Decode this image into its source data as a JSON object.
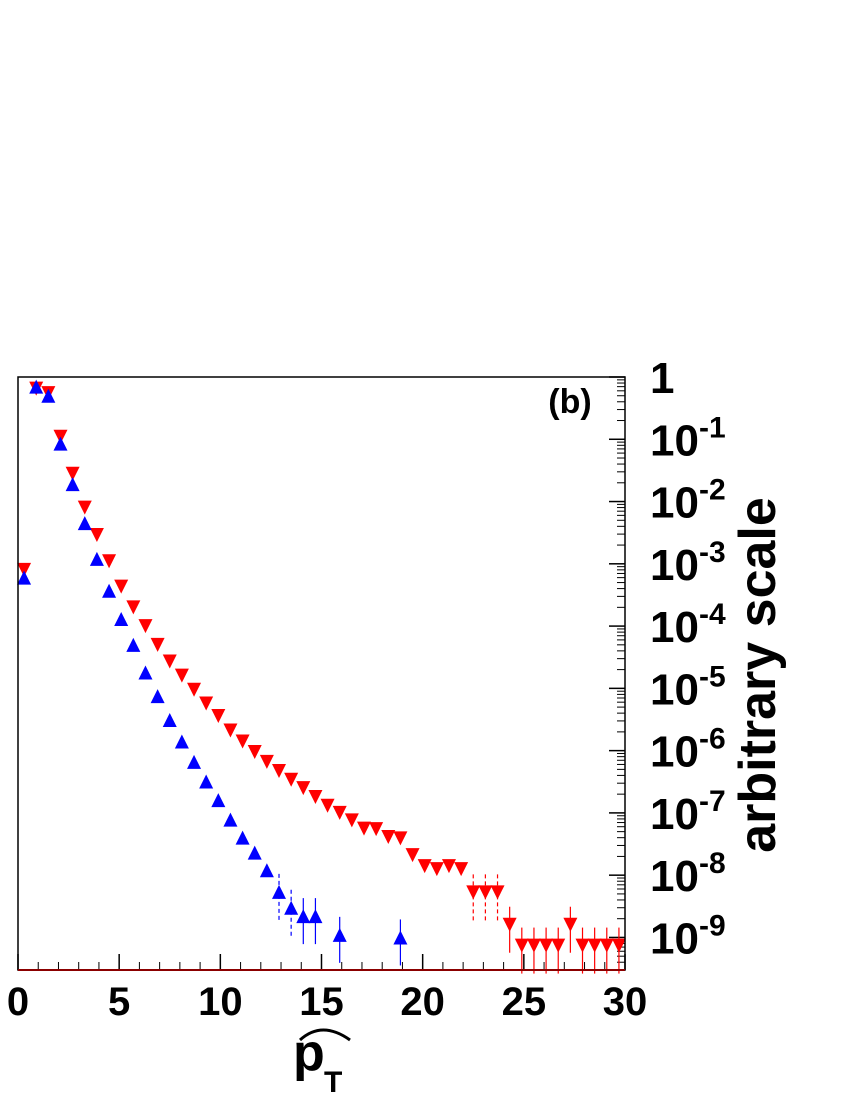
{
  "chart_data": {
    "type": "scatter",
    "panel_label": "(b)",
    "xlabel": "p",
    "xlabel_subscript": "T",
    "ylabel": "arbitrary scale",
    "xlim": [
      0,
      30
    ],
    "ylim": [
      3e-10,
      1
    ],
    "y_scale": "log",
    "x_ticks": [
      0,
      5,
      10,
      15,
      20,
      25,
      30
    ],
    "y_ticks": [
      {
        "value": 1,
        "base": "1",
        "exp": ""
      },
      {
        "value": 0.1,
        "base": "10",
        "exp": "-1"
      },
      {
        "value": 0.01,
        "base": "10",
        "exp": "-2"
      },
      {
        "value": 0.001,
        "base": "10",
        "exp": "-3"
      },
      {
        "value": 0.0001,
        "base": "10",
        "exp": "-4"
      },
      {
        "value": 1e-05,
        "base": "10",
        "exp": "-5"
      },
      {
        "value": 1e-06,
        "base": "10",
        "exp": "-6"
      },
      {
        "value": 1e-07,
        "base": "10",
        "exp": "-7"
      },
      {
        "value": 1e-08,
        "base": "10",
        "exp": "-8"
      },
      {
        "value": 1e-09,
        "base": "10",
        "exp": "-9"
      }
    ],
    "series": [
      {
        "marker": "triangle-down",
        "color": "#ff0000",
        "points": [
          {
            "x": 0.3,
            "y": 0.0008
          },
          {
            "x": 0.9,
            "y": 0.65
          },
          {
            "x": 1.5,
            "y": 0.55
          },
          {
            "x": 2.1,
            "y": 0.11
          },
          {
            "x": 2.7,
            "y": 0.028
          },
          {
            "x": 3.3,
            "y": 0.008
          },
          {
            "x": 3.9,
            "y": 0.0029
          },
          {
            "x": 4.5,
            "y": 0.0011
          },
          {
            "x": 5.1,
            "y": 0.00043
          },
          {
            "x": 5.7,
            "y": 0.0002
          },
          {
            "x": 6.3,
            "y": 0.0001
          },
          {
            "x": 6.9,
            "y": 5e-05
          },
          {
            "x": 7.5,
            "y": 2.7e-05
          },
          {
            "x": 8.1,
            "y": 1.6e-05
          },
          {
            "x": 8.7,
            "y": 9.5e-06
          },
          {
            "x": 9.3,
            "y": 5.7e-06
          },
          {
            "x": 9.9,
            "y": 3.6e-06
          },
          {
            "x": 10.5,
            "y": 2.1e-06
          },
          {
            "x": 11.1,
            "y": 1.4e-06
          },
          {
            "x": 11.7,
            "y": 9.5e-07
          },
          {
            "x": 12.3,
            "y": 6.6e-07
          },
          {
            "x": 12.9,
            "y": 4.7e-07
          },
          {
            "x": 13.5,
            "y": 3.4e-07
          },
          {
            "x": 14.1,
            "y": 2.5e-07
          },
          {
            "x": 14.7,
            "y": 1.8e-07
          },
          {
            "x": 15.3,
            "y": 1.3e-07
          },
          {
            "x": 15.9,
            "y": 1e-07
          },
          {
            "x": 16.5,
            "y": 7.6e-08
          },
          {
            "x": 17.1,
            "y": 5.6e-08
          },
          {
            "x": 17.7,
            "y": 5.5e-08
          },
          {
            "x": 18.3,
            "y": 4.1e-08
          },
          {
            "x": 18.9,
            "y": 3.9e-08
          },
          {
            "x": 19.5,
            "y": 2.1e-08
          },
          {
            "x": 20.1,
            "y": 1.4e-08
          },
          {
            "x": 20.7,
            "y": 1.25e-08
          },
          {
            "x": 21.3,
            "y": 1.4e-08
          },
          {
            "x": 21.9,
            "y": 1.25e-08
          },
          {
            "x": 22.5,
            "y": 5.3e-09
          },
          {
            "x": 23.1,
            "y": 5.3e-09
          },
          {
            "x": 23.7,
            "y": 5.3e-09
          },
          {
            "x": 24.3,
            "y": 1.6e-09
          },
          {
            "x": 24.9,
            "y": 7.4e-10
          },
          {
            "x": 25.5,
            "y": 7.4e-10
          },
          {
            "x": 26.1,
            "y": 7.4e-10
          },
          {
            "x": 26.7,
            "y": 7.4e-10
          },
          {
            "x": 27.3,
            "y": 1.6e-09
          },
          {
            "x": 27.9,
            "y": 7.4e-10
          },
          {
            "x": 28.5,
            "y": 7.4e-10
          },
          {
            "x": 29.1,
            "y": 7.4e-10
          },
          {
            "x": 29.7,
            "y": 7.4e-10
          }
        ]
      },
      {
        "marker": "triangle-up",
        "color": "#0000ff",
        "points": [
          {
            "x": 0.3,
            "y": 0.0006
          },
          {
            "x": 0.9,
            "y": 0.7
          },
          {
            "x": 1.5,
            "y": 0.5
          },
          {
            "x": 2.1,
            "y": 0.085
          },
          {
            "x": 2.7,
            "y": 0.019
          },
          {
            "x": 3.3,
            "y": 0.0045
          },
          {
            "x": 3.9,
            "y": 0.0012
          },
          {
            "x": 4.5,
            "y": 0.00037
          },
          {
            "x": 5.1,
            "y": 0.00013
          },
          {
            "x": 5.7,
            "y": 5e-05
          },
          {
            "x": 6.3,
            "y": 1.8e-05
          },
          {
            "x": 6.9,
            "y": 7.5e-06
          },
          {
            "x": 7.5,
            "y": 3.1e-06
          },
          {
            "x": 8.1,
            "y": 1.4e-06
          },
          {
            "x": 8.7,
            "y": 6.6e-07
          },
          {
            "x": 9.3,
            "y": 3.2e-07
          },
          {
            "x": 9.9,
            "y": 1.6e-07
          },
          {
            "x": 10.5,
            "y": 7.8e-08
          },
          {
            "x": 11.1,
            "y": 4e-08
          },
          {
            "x": 11.7,
            "y": 2.3e-08
          },
          {
            "x": 12.3,
            "y": 1.2e-08
          },
          {
            "x": 12.9,
            "y": 5.4e-09
          },
          {
            "x": 13.5,
            "y": 3e-09
          },
          {
            "x": 14.1,
            "y": 2.2e-09
          },
          {
            "x": 14.7,
            "y": 2.2e-09
          },
          {
            "x": 15.9,
            "y": 1.1e-09
          },
          {
            "x": 18.9,
            "y": 1e-09
          }
        ]
      }
    ]
  }
}
